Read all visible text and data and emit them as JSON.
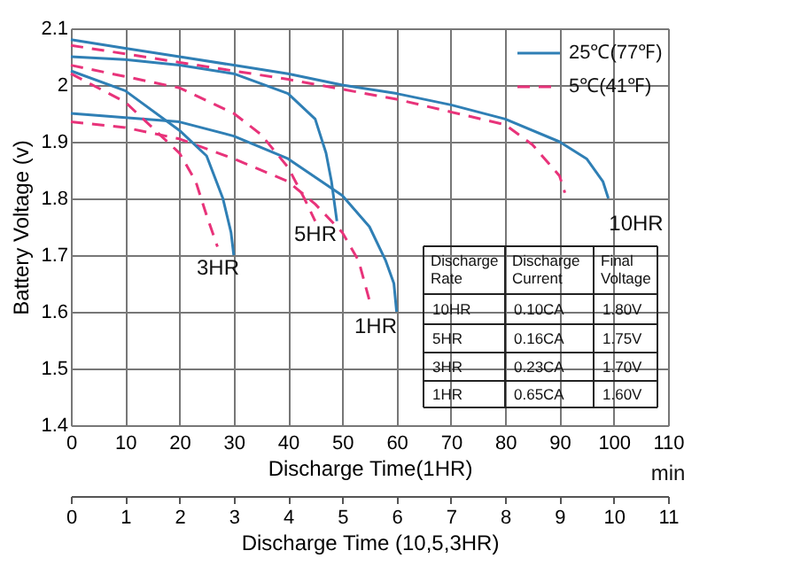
{
  "chart_data": {
    "type": "line",
    "xlabel": "Discharge Time(1HR)",
    "x2label": "Discharge Time (10,5,3HR)",
    "ylabel": "Battery Voltage (v)",
    "xlim": [
      0,
      110
    ],
    "xticks": [
      0,
      10,
      20,
      30,
      40,
      50,
      60,
      70,
      80,
      90,
      100,
      110
    ],
    "x2lim": [
      0,
      11
    ],
    "x2ticks": [
      0,
      1,
      2,
      3,
      4,
      5,
      6,
      7,
      8,
      9,
      10,
      11
    ],
    "ylim": [
      1.4,
      2.1
    ],
    "yticks": [
      1.4,
      1.5,
      1.6,
      1.7,
      1.8,
      1.9,
      2,
      2.1
    ],
    "grid": true,
    "legend": "top right",
    "series": [
      {
        "name": "25℃(77℉)",
        "color": "#2f7fb5",
        "line_style": "solid",
        "axis": "x2",
        "x": [
          0,
          1,
          2,
          3,
          4,
          5,
          6,
          7,
          8,
          9,
          9.5,
          9.8,
          9.9
        ],
        "values": [
          2.08,
          2.065,
          2.05,
          2.035,
          2.02,
          2.0,
          1.985,
          1.965,
          1.94,
          1.9,
          1.87,
          1.83,
          1.8
        ]
      },
      {
        "name": "5℃(41℉)",
        "color": "#e8337a",
        "line_style": "dashed",
        "axis": "x2",
        "x": [
          0,
          2,
          4,
          6,
          8,
          8.5,
          9,
          9.1
        ],
        "values": [
          2.07,
          2.04,
          2.01,
          1.975,
          1.93,
          1.895,
          1.84,
          1.81
        ]
      },
      {
        "color": "#2f7fb5",
        "line_style": "solid",
        "axis": "x2",
        "x": [
          0,
          1,
          2,
          3,
          4,
          4.5,
          4.7,
          4.8,
          4.9
        ],
        "values": [
          2.05,
          2.045,
          2.035,
          2.02,
          1.985,
          1.94,
          1.88,
          1.83,
          1.76
        ]
      },
      {
        "color": "#e8337a",
        "line_style": "dashed",
        "axis": "x2",
        "x": [
          0,
          2,
          3,
          3.5,
          4,
          4.3,
          4.5
        ],
        "values": [
          2.035,
          1.995,
          1.95,
          1.913,
          1.855,
          1.8,
          1.76
        ]
      },
      {
        "color": "#2f7fb5",
        "line_style": "solid",
        "axis": "x2",
        "x": [
          0,
          1,
          2,
          2.5,
          2.8,
          2.95,
          3.0
        ],
        "values": [
          2.025,
          1.99,
          1.92,
          1.875,
          1.8,
          1.74,
          1.7
        ]
      },
      {
        "color": "#e8337a",
        "line_style": "dashed",
        "axis": "x2",
        "x": [
          0,
          1,
          2,
          2.3,
          2.5,
          2.7
        ],
        "values": [
          2.02,
          1.97,
          1.88,
          1.83,
          1.77,
          1.715
        ]
      },
      {
        "color": "#2f7fb5",
        "line_style": "solid",
        "x": [
          0,
          20,
          30,
          40,
          50,
          55,
          58,
          59.5,
          60
        ],
        "values": [
          1.95,
          1.935,
          1.91,
          1.87,
          1.805,
          1.75,
          1.69,
          1.65,
          1.6
        ]
      },
      {
        "color": "#e8337a",
        "line_style": "dashed",
        "x": [
          0,
          10,
          20,
          30,
          40,
          45,
          50,
          53,
          55
        ],
        "values": [
          1.935,
          1.925,
          1.905,
          1.87,
          1.83,
          1.79,
          1.74,
          1.69,
          1.62
        ]
      }
    ],
    "annotations": [
      "10HR",
      "5HR",
      "3HR",
      "1HR",
      "Discharge Rate",
      "Discharge Current",
      "Final Voltage",
      "10HR",
      "0.10CA",
      "1.80V",
      "5HR",
      "0.16CA",
      "1.75V",
      "3HR",
      "0.23CA",
      "1.70V",
      "1HR",
      "0.65CA",
      "1.60V",
      "min"
    ]
  }
}
